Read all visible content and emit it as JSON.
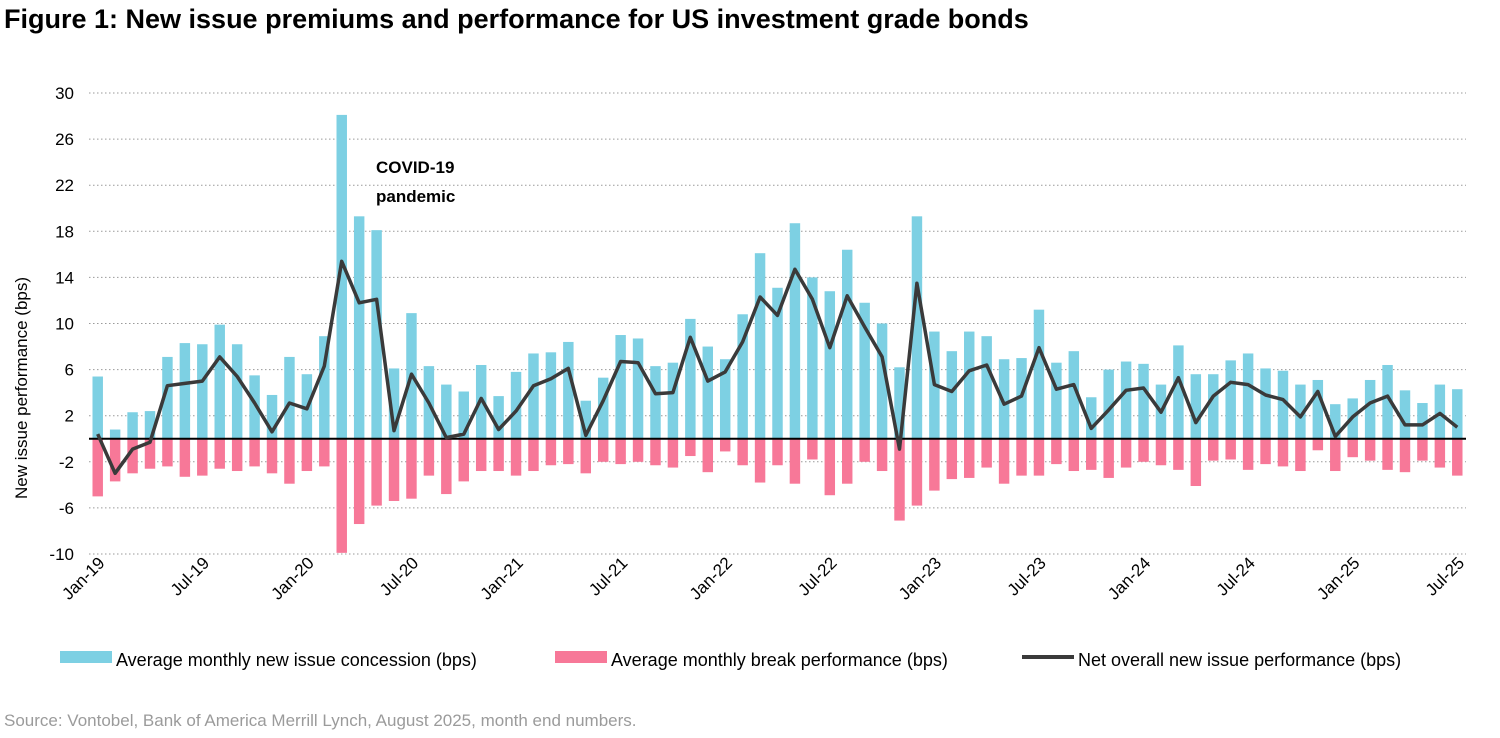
{
  "title": "Figure 1: New issue premiums and performance for US investment grade bonds",
  "source": "Source: Vontobel, Bank of America Merrill Lynch, August 2025, month end numbers.",
  "chart_data": {
    "type": "bar",
    "ylabel": "New issue performance (bps)",
    "ylim": [
      -10,
      30
    ],
    "yticks": [
      30,
      26,
      22,
      18,
      14,
      10,
      6,
      2,
      -2,
      -6,
      -10
    ],
    "grid": "horizontal dotted",
    "legend_position": "bottom",
    "x_tick_labels": [
      "Jan-19",
      "Jul-19",
      "Jan-20",
      "Jul-20",
      "Jan-21",
      "Jul-21",
      "Jan-22",
      "Jul-22",
      "Jan-23",
      "Jul-23",
      "Jan-24",
      "Jul-24",
      "Jan-25",
      "Jul-25"
    ],
    "annotation": {
      "line1": "COVID-19",
      "line2": "pandemic",
      "at_month": "Apr-20"
    },
    "colors": {
      "concession": "#7dd0e3",
      "break": "#f77898",
      "net": "#3a3a3a"
    },
    "months": [
      "Jan-19",
      "Feb-19",
      "Mar-19",
      "Apr-19",
      "May-19",
      "Jun-19",
      "Jul-19",
      "Aug-19",
      "Sep-19",
      "Oct-19",
      "Nov-19",
      "Dec-19",
      "Jan-20",
      "Feb-20",
      "Mar-20",
      "Apr-20",
      "May-20",
      "Jun-20",
      "Jul-20",
      "Aug-20",
      "Sep-20",
      "Oct-20",
      "Nov-20",
      "Dec-20",
      "Jan-21",
      "Feb-21",
      "Mar-21",
      "Apr-21",
      "May-21",
      "Jun-21",
      "Jul-21",
      "Aug-21",
      "Sep-21",
      "Oct-21",
      "Nov-21",
      "Dec-21",
      "Jan-22",
      "Feb-22",
      "Mar-22",
      "Apr-22",
      "May-22",
      "Jun-22",
      "Jul-22",
      "Aug-22",
      "Sep-22",
      "Oct-22",
      "Nov-22",
      "Dec-22",
      "Jan-23",
      "Feb-23",
      "Mar-23",
      "Apr-23",
      "May-23",
      "Jun-23",
      "Jul-23",
      "Aug-23",
      "Sep-23",
      "Oct-23",
      "Nov-23",
      "Dec-23",
      "Jan-24",
      "Feb-24",
      "Mar-24",
      "Apr-24",
      "May-24",
      "Jun-24",
      "Jul-24",
      "Aug-24",
      "Sep-24",
      "Oct-24",
      "Nov-24",
      "Dec-24",
      "Jan-25",
      "Feb-25",
      "Mar-25",
      "Apr-25",
      "May-25",
      "Jun-25",
      "Jul-25"
    ],
    "series": [
      {
        "name": "Average monthly new issue concession (bps)",
        "type": "bar",
        "values": [
          5.4,
          0.8,
          2.3,
          2.4,
          7.1,
          8.3,
          8.2,
          9.9,
          8.2,
          5.5,
          3.8,
          7.1,
          5.6,
          8.9,
          28.1,
          19.3,
          18.1,
          6.1,
          10.9,
          6.3,
          4.7,
          4.1,
          6.4,
          3.7,
          5.8,
          7.4,
          7.5,
          8.4,
          3.3,
          5.3,
          9.0,
          8.7,
          6.3,
          6.6,
          10.4,
          8.0,
          6.9,
          10.8,
          16.1,
          13.1,
          18.7,
          14.0,
          12.8,
          16.4,
          11.8,
          10.0,
          6.2,
          19.3,
          9.3,
          7.6,
          9.3,
          8.9,
          6.9,
          7.0,
          11.2,
          6.6,
          7.6,
          3.6,
          6.0,
          6.7,
          6.5,
          4.7,
          8.1,
          5.6,
          5.6,
          6.8,
          7.4,
          6.1,
          5.9,
          4.7,
          5.1,
          3.0,
          3.5,
          5.1,
          6.4,
          4.2,
          3.1,
          4.7,
          4.3
        ]
      },
      {
        "name": "Average monthly break performance (bps)",
        "type": "bar",
        "values": [
          -5.0,
          -3.7,
          -3.0,
          -2.6,
          -2.4,
          -3.3,
          -3.2,
          -2.6,
          -2.8,
          -2.4,
          -3.0,
          -3.9,
          -2.8,
          -2.4,
          -9.9,
          -7.4,
          -5.8,
          -5.4,
          -5.2,
          -3.2,
          -4.8,
          -3.7,
          -2.8,
          -2.8,
          -3.2,
          -2.8,
          -2.3,
          -2.2,
          -3.0,
          -2.0,
          -2.2,
          -2.0,
          -2.3,
          -2.5,
          -1.5,
          -2.9,
          -1.1,
          -2.3,
          -3.8,
          -2.3,
          -3.9,
          -1.8,
          -4.9,
          -3.9,
          -2.0,
          -2.8,
          -7.1,
          -5.8,
          -4.5,
          -3.5,
          -3.4,
          -2.5,
          -3.9,
          -3.2,
          -3.2,
          -2.2,
          -2.8,
          -2.7,
          -3.4,
          -2.5,
          -2.0,
          -2.3,
          -2.7,
          -4.1,
          -1.9,
          -1.8,
          -2.7,
          -2.2,
          -2.4,
          -2.8,
          -1.0,
          -2.8,
          -1.6,
          -1.9,
          -2.7,
          -2.9,
          -1.9,
          -2.5,
          -3.2
        ]
      },
      {
        "name": "Net overall new issue performance (bps)",
        "type": "line",
        "values": [
          0.4,
          -3.0,
          -0.9,
          -0.3,
          4.6,
          4.8,
          5.0,
          7.1,
          5.4,
          3.1,
          0.6,
          3.1,
          2.6,
          6.3,
          15.4,
          11.8,
          12.1,
          0.7,
          5.6,
          3.1,
          0.1,
          0.4,
          3.5,
          0.8,
          2.4,
          4.6,
          5.2,
          6.1,
          0.3,
          3.3,
          6.7,
          6.6,
          3.9,
          4.0,
          8.8,
          5.0,
          5.8,
          8.4,
          12.3,
          10.7,
          14.7,
          12.1,
          7.9,
          12.4,
          9.7,
          7.1,
          -0.9,
          13.5,
          4.7,
          4.1,
          5.9,
          6.4,
          3.0,
          3.7,
          7.9,
          4.3,
          4.7,
          0.9,
          2.5,
          4.2,
          4.4,
          2.3,
          5.3,
          1.4,
          3.7,
          4.9,
          4.7,
          3.8,
          3.4,
          1.9,
          4.1,
          0.2,
          1.9,
          3.1,
          3.7,
          1.2,
          1.2,
          2.2,
          1.0
        ]
      }
    ]
  }
}
